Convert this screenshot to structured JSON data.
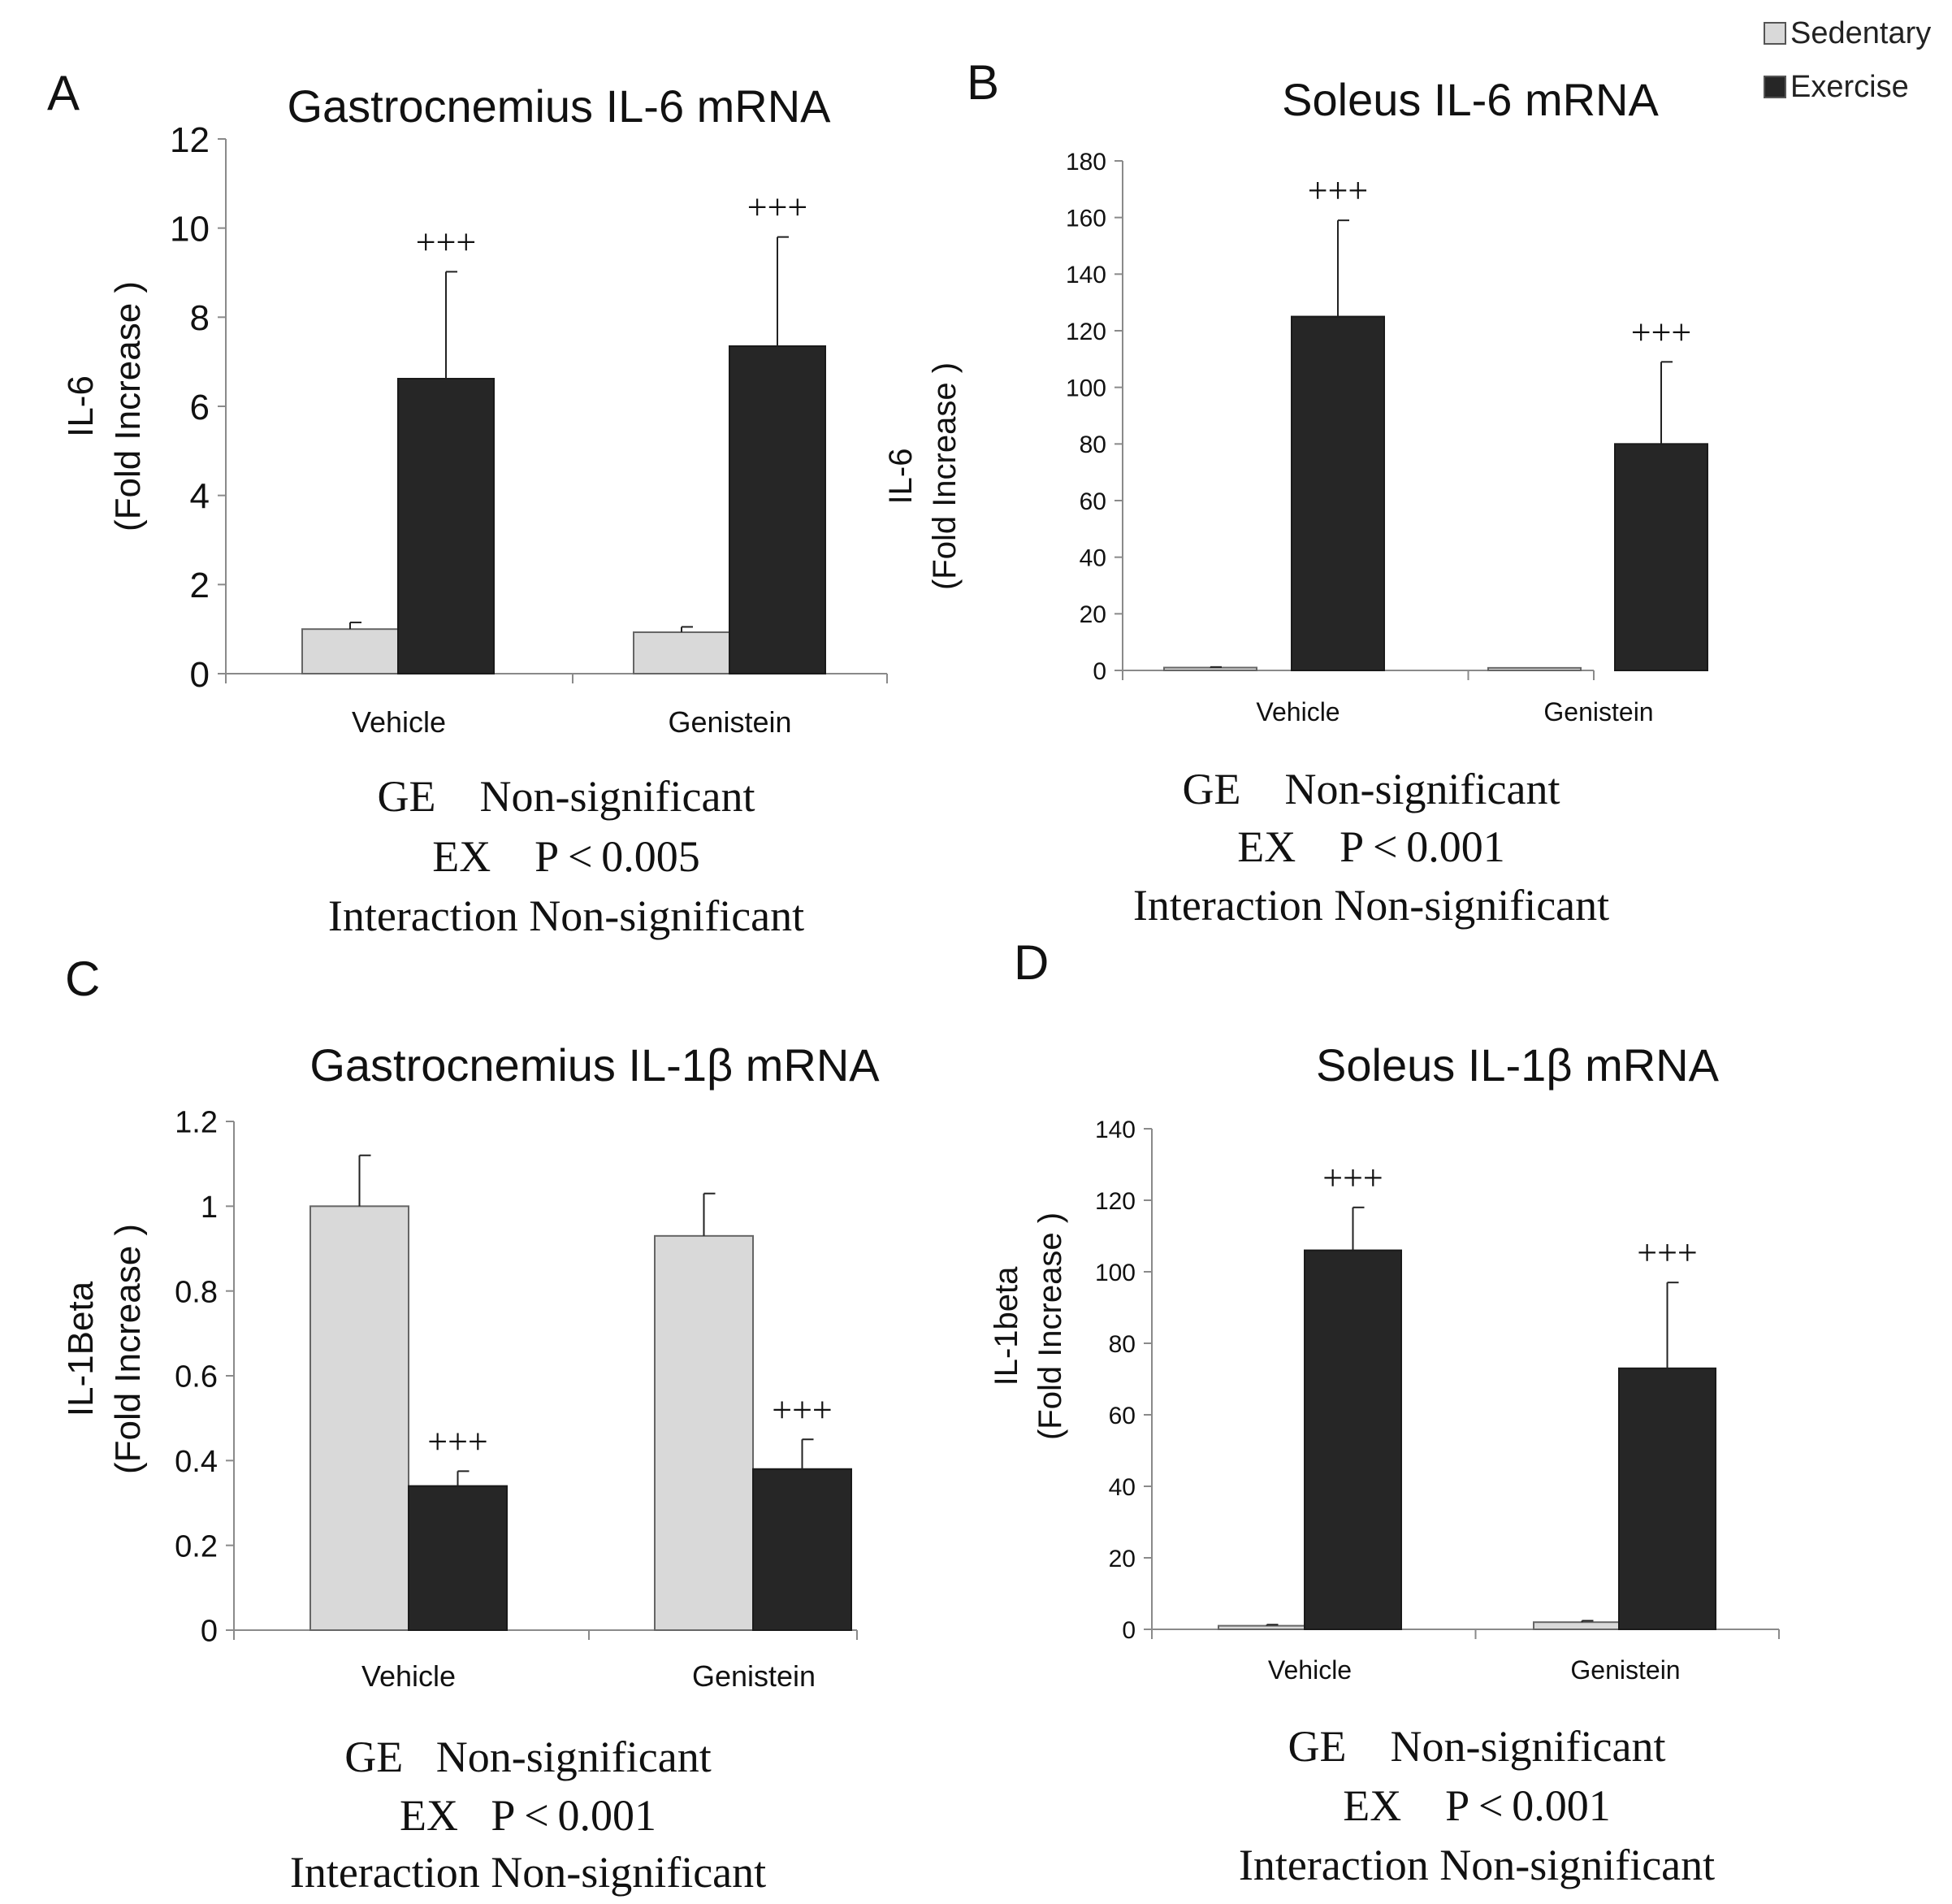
{
  "legend": {
    "items": [
      {
        "name": "Sedentary",
        "color": "#d9d9d9"
      },
      {
        "name": "Exercise",
        "color": "#262626"
      }
    ]
  },
  "chart_data": [
    {
      "panel": "A",
      "type": "bar",
      "title": "Gastrocnemius IL-6 mRNA",
      "ylabel_line1": "IL-6",
      "ylabel_line2": "(Fold Increase )",
      "categories": [
        "Vehicle",
        "Genistein"
      ],
      "ylim": [
        0,
        12
      ],
      "yticks": [
        "0",
        "2",
        "4",
        "6",
        "8",
        "10",
        "12"
      ],
      "series": [
        {
          "name": "Sedentary",
          "values": [
            1.0,
            0.93
          ],
          "errors": [
            0.15,
            0.12
          ],
          "sig": [
            "",
            ""
          ]
        },
        {
          "name": "Exercise",
          "values": [
            6.62,
            7.35
          ],
          "errors": [
            2.4,
            2.45
          ],
          "sig": [
            "+++",
            "+++"
          ]
        }
      ],
      "stats": [
        "GE    Non-significant",
        "EX    P < 0.005",
        "Interaction Non-significant"
      ]
    },
    {
      "panel": "B",
      "type": "bar",
      "title": "Soleus IL-6 mRNA",
      "ylabel_line1": "IL-6",
      "ylabel_line2": "(Fold Increase )",
      "categories": [
        "Vehicle",
        "Genistein"
      ],
      "ylim": [
        0,
        180
      ],
      "yticks": [
        "0",
        "20",
        "40",
        "60",
        "80",
        "100",
        "120",
        "140",
        "160",
        "180"
      ],
      "series": [
        {
          "name": "Sedentary",
          "values": [
            1.0,
            0.9
          ],
          "errors": [
            0.2,
            0.2
          ],
          "sig": [
            "",
            ""
          ]
        },
        {
          "name": "Exercise",
          "values": [
            125,
            80
          ],
          "errors": [
            34,
            29
          ],
          "sig": [
            "+++",
            "+++"
          ]
        }
      ],
      "stats": [
        "GE    Non-significant",
        "EX    P < 0.001",
        "Interaction Non-significant"
      ]
    },
    {
      "panel": "C",
      "type": "bar",
      "title": "Gastrocnemius IL-1β mRNA",
      "ylabel_line1": "IL-1Beta",
      "ylabel_line2": "(Fold Increase )",
      "categories": [
        "Vehicle",
        "Genistein"
      ],
      "ylim": [
        0,
        1.2
      ],
      "yticks": [
        "0",
        "0.2",
        "0.4",
        "0.6",
        "0.8",
        "1",
        "1.2"
      ],
      "series": [
        {
          "name": "Sedentary",
          "values": [
            1.0,
            0.93
          ],
          "errors": [
            0.12,
            0.1
          ],
          "sig": [
            "",
            ""
          ]
        },
        {
          "name": "Exercise",
          "values": [
            0.34,
            0.38
          ],
          "errors": [
            0.035,
            0.07
          ],
          "sig": [
            "+++",
            "+++"
          ]
        }
      ],
      "stats": [
        "GE   Non-significant",
        "EX   P < 0.001",
        "Interaction Non-significant"
      ]
    },
    {
      "panel": "D",
      "type": "bar",
      "title": "Soleus IL-1β mRNA",
      "ylabel_line1": "IL-1beta",
      "ylabel_line2": "(Fold Increase )",
      "categories": [
        "Vehicle",
        "Genistein"
      ],
      "ylim": [
        0,
        140
      ],
      "yticks": [
        "0",
        "20",
        "40",
        "60",
        "80",
        "100",
        "120",
        "140"
      ],
      "series": [
        {
          "name": "Sedentary",
          "values": [
            1.0,
            2.0
          ],
          "errors": [
            0.3,
            0.4
          ],
          "sig": [
            "",
            ""
          ]
        },
        {
          "name": "Exercise",
          "values": [
            106,
            73
          ],
          "errors": [
            12,
            24
          ],
          "sig": [
            "+++",
            "+++"
          ]
        }
      ],
      "stats": [
        "GE    Non-significant",
        "EX    P < 0.001",
        "Interaction Non-significant"
      ]
    }
  ]
}
